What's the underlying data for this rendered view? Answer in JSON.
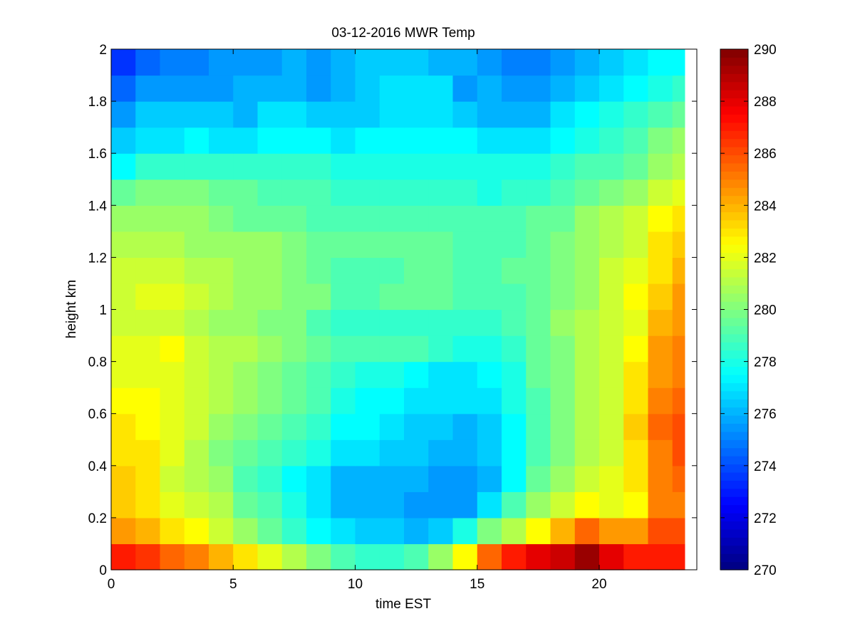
{
  "chart_data": {
    "type": "heatmap",
    "title": "03-12-2016 MWR Temp",
    "xlabel": "time EST",
    "ylabel": "height km",
    "xlim": [
      0,
      24
    ],
    "ylim": [
      0,
      2
    ],
    "x_ticks": [
      0,
      5,
      10,
      15,
      20
    ],
    "y_ticks": [
      0,
      0.2,
      0.4,
      0.6,
      0.8,
      1,
      1.2,
      1.4,
      1.6,
      1.8,
      2
    ],
    "colorbar": {
      "min": 270,
      "max": 290,
      "ticks": [
        270,
        272,
        274,
        276,
        278,
        280,
        282,
        284,
        286,
        288,
        290
      ],
      "colormap": "jet"
    },
    "grid": false,
    "x_bin_width": 1,
    "x_bin_start": 0,
    "x_bin_end": 23.5,
    "height_levels_km": [
      0,
      0.1,
      0.2,
      0.3,
      0.4,
      0.5,
      0.6,
      0.7,
      0.8,
      0.9,
      1.0,
      1.1,
      1.2,
      1.3,
      1.4,
      1.5,
      1.6,
      1.7,
      1.8,
      1.9,
      2.0
    ],
    "temperature_K": [
      [
        287,
        286.5,
        285.5,
        285,
        284,
        283,
        282,
        281,
        280,
        279,
        278.5,
        278.5,
        279,
        280.5,
        282.5,
        285.5,
        287,
        288,
        288.5,
        289.5,
        288,
        287,
        287,
        287
      ],
      [
        284.5,
        284,
        283,
        282.5,
        281.5,
        280.5,
        279.5,
        278.5,
        277.5,
        277,
        276.5,
        276.5,
        276,
        276.5,
        278,
        280,
        281,
        282.5,
        284,
        285.5,
        284.5,
        284.5,
        286,
        286
      ],
      [
        283.5,
        283,
        282,
        281.5,
        281,
        279.5,
        279,
        278,
        277,
        276,
        276,
        276,
        275.5,
        275.5,
        275.5,
        277,
        279,
        280.5,
        281.5,
        282.5,
        282,
        282.5,
        285,
        285
      ],
      [
        283.5,
        283,
        281.5,
        281,
        280.5,
        279,
        278.5,
        277.5,
        277,
        276,
        276,
        276,
        276,
        275.5,
        275.5,
        276,
        277.5,
        279.5,
        280.5,
        281.5,
        282,
        283,
        285,
        285.5
      ],
      [
        283,
        283,
        282,
        281,
        280,
        279.5,
        279,
        278.5,
        278,
        277,
        277,
        276.5,
        276.5,
        276,
        276,
        276.5,
        277.5,
        279,
        280,
        281,
        281.5,
        283,
        285,
        286
      ],
      [
        283,
        282.5,
        282,
        281.5,
        280.5,
        280,
        279.5,
        279,
        278.5,
        277.5,
        277.5,
        277,
        276.5,
        276.5,
        276,
        276.5,
        277.5,
        279,
        280,
        281,
        281.5,
        283.5,
        285.5,
        286
      ],
      [
        282.5,
        282.5,
        282,
        281.5,
        281,
        280.5,
        280,
        279.5,
        279,
        278,
        277.5,
        277.5,
        277,
        277,
        277,
        277,
        278,
        279,
        280,
        281,
        281.5,
        283,
        285,
        285.5
      ],
      [
        282,
        282,
        282,
        281.5,
        281,
        280.5,
        280,
        279.5,
        279,
        278.5,
        278,
        278,
        277.5,
        277,
        277,
        277.5,
        278,
        279.5,
        280,
        281,
        281.5,
        283,
        284.5,
        285
      ],
      [
        282,
        282,
        282.5,
        281.5,
        281,
        281,
        280.5,
        280,
        279.5,
        279,
        279,
        279,
        279,
        278.5,
        278,
        278,
        278.5,
        279.5,
        280,
        281,
        281.5,
        282.5,
        284.5,
        285
      ],
      [
        281.5,
        281.5,
        281.5,
        281,
        280.5,
        280.5,
        280,
        280,
        279,
        278.5,
        278.5,
        278.5,
        278.5,
        278.5,
        278.5,
        278.5,
        279,
        279.5,
        280.5,
        281,
        281.5,
        282,
        284,
        284.5
      ],
      [
        281.5,
        282,
        282,
        281.5,
        281,
        280.5,
        280.5,
        280,
        280,
        279,
        279,
        279.5,
        279.5,
        279.5,
        279,
        279,
        279,
        279.5,
        280,
        280.5,
        281.5,
        282.5,
        283.5,
        284.5
      ],
      [
        281.5,
        281.5,
        281.5,
        281,
        281,
        280.5,
        280.5,
        280,
        279.5,
        279,
        279,
        279,
        279.5,
        279.5,
        279,
        279,
        279.5,
        279.5,
        280,
        280.5,
        281.5,
        282,
        283,
        284
      ],
      [
        281,
        281,
        281,
        280.5,
        280.5,
        280.5,
        280.5,
        280,
        279.5,
        279.5,
        279.5,
        279.5,
        279.5,
        279.5,
        279,
        279,
        279,
        279.5,
        280,
        280.5,
        281,
        281.5,
        283,
        283.5
      ],
      [
        280.5,
        280.5,
        280.5,
        280.5,
        280,
        279.5,
        279.5,
        279.5,
        279,
        279,
        279,
        279,
        279,
        279,
        279,
        279,
        279,
        279.5,
        279.5,
        280.5,
        281,
        281.5,
        282.5,
        283
      ],
      [
        279.5,
        280,
        280,
        280,
        279.5,
        279.5,
        279,
        279,
        279,
        278.5,
        278.5,
        278.5,
        278.5,
        278.5,
        278.5,
        278,
        278.5,
        278.5,
        279,
        279.5,
        280,
        280.5,
        281.5,
        282
      ],
      [
        277.5,
        278.5,
        278.5,
        278.5,
        278.5,
        278.5,
        278.5,
        278.5,
        278.5,
        278,
        278,
        278,
        278,
        278,
        278,
        278,
        278,
        278,
        278.5,
        279,
        279,
        279.5,
        280.5,
        281
      ],
      [
        276.5,
        277,
        277,
        277.5,
        277,
        277,
        277.5,
        277.5,
        277.5,
        277,
        277.5,
        277.5,
        277.5,
        277.5,
        277.5,
        277,
        277,
        277,
        277.5,
        278,
        278.5,
        279,
        280,
        280.5
      ],
      [
        275.5,
        276.5,
        276.5,
        276.5,
        276.5,
        276,
        277,
        277,
        276.5,
        276.5,
        276.5,
        277,
        277,
        277,
        276.5,
        276,
        276,
        276,
        277,
        277.5,
        278,
        278.5,
        279,
        279.5
      ],
      [
        274.5,
        275.5,
        275.5,
        275.5,
        275.5,
        276,
        276,
        276,
        275.5,
        276,
        276.5,
        277,
        277,
        277,
        275.5,
        276,
        275.5,
        275.5,
        276,
        276.5,
        277,
        277.5,
        278,
        278.5
      ],
      [
        273.5,
        274.5,
        275,
        275,
        275.5,
        275.5,
        275.5,
        276,
        275.5,
        276,
        276.5,
        276.5,
        276.5,
        276,
        276,
        275.5,
        275,
        275,
        275.5,
        276,
        276.5,
        277,
        277.5,
        277.5
      ]
    ]
  }
}
